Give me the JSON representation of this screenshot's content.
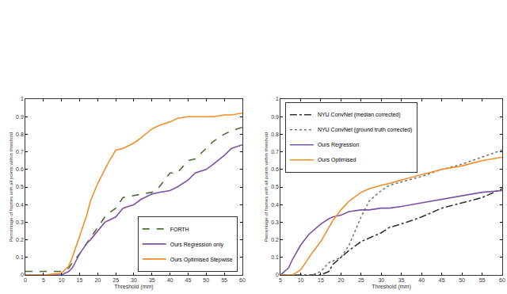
{
  "chart_data": [
    {
      "type": "line",
      "x_label": "Threshold (mm)",
      "y_label": "Percentage of frames with all points within threshold",
      "xlim": [
        0,
        60
      ],
      "ylim": [
        0,
        1
      ],
      "xticks": [
        0,
        5,
        10,
        15,
        20,
        25,
        30,
        35,
        40,
        45,
        50,
        55,
        60
      ],
      "yticks": [
        0,
        0.1,
        0.2,
        0.3,
        0.4,
        0.5,
        0.6,
        0.7,
        0.8,
        0.9,
        1
      ],
      "grid": false,
      "legend": "lower right",
      "x": [
        0,
        5,
        10,
        12,
        13,
        15,
        17,
        18,
        20,
        22,
        23,
        25,
        27,
        30,
        32,
        35,
        37,
        40,
        42,
        45,
        47,
        50,
        52,
        55,
        57,
        60
      ],
      "series": [
        {
          "name": "FORTH",
          "color": "#4f6b2f",
          "line_style": "dash",
          "values": [
            0.02,
            0.02,
            0.02,
            0.04,
            0.07,
            0.12,
            0.18,
            0.21,
            0.27,
            0.33,
            0.35,
            0.38,
            0.44,
            0.45,
            0.46,
            0.47,
            0.5,
            0.58,
            0.58,
            0.65,
            0.66,
            0.72,
            0.76,
            0.8,
            0.82,
            0.84
          ]
        },
        {
          "name": "Ours Regression only",
          "color": "#7b52a5",
          "line_style": "solid",
          "values": [
            0,
            0,
            0,
            0.02,
            0.04,
            0.12,
            0.18,
            0.2,
            0.25,
            0.3,
            0.31,
            0.33,
            0.38,
            0.4,
            0.43,
            0.46,
            0.47,
            0.48,
            0.5,
            0.54,
            0.58,
            0.6,
            0.63,
            0.68,
            0.72,
            0.74
          ]
        },
        {
          "name": "Ours Optimised Stepwise",
          "color": "#f28e2b",
          "line_style": "solid",
          "values": [
            0,
            0,
            0.01,
            0.05,
            0.1,
            0.22,
            0.34,
            0.42,
            0.52,
            0.6,
            0.64,
            0.71,
            0.72,
            0.75,
            0.78,
            0.83,
            0.85,
            0.87,
            0.89,
            0.9,
            0.9,
            0.9,
            0.9,
            0.91,
            0.91,
            0.92
          ]
        }
      ]
    },
    {
      "type": "line",
      "x_label": "Threshold (mm)",
      "y_label": "Percentage of frames with all points within threshold",
      "xlim": [
        5,
        60
      ],
      "ylim": [
        0,
        1
      ],
      "xticks": [
        5,
        10,
        15,
        20,
        25,
        30,
        35,
        40,
        45,
        50,
        55,
        60
      ],
      "yticks": [
        0,
        0.1,
        0.2,
        0.3,
        0.4,
        0.5,
        0.6,
        0.7,
        0.8,
        0.9,
        1
      ],
      "grid": false,
      "legend": "upper left",
      "x": [
        5,
        7,
        8,
        10,
        12,
        13,
        15,
        17,
        18,
        20,
        22,
        25,
        27,
        30,
        32,
        35,
        40,
        45,
        50,
        55,
        60
      ],
      "series": [
        {
          "name": "NYU ConvNet (median corrected)",
          "color": "#333333",
          "line_style": "dashdot",
          "values": [
            0,
            0,
            0,
            0,
            0,
            0,
            0,
            0.02,
            0.06,
            0.1,
            0.14,
            0.19,
            0.21,
            0.24,
            0.27,
            0.29,
            0.33,
            0.38,
            0.41,
            0.44,
            0.49
          ]
        },
        {
          "name": "NYU ConvNet (ground truth corrected)",
          "color": "#777777",
          "line_style": "dot",
          "values": [
            0,
            0,
            0,
            0,
            0,
            0,
            0.02,
            0.07,
            0.08,
            0.1,
            0.17,
            0.33,
            0.42,
            0.48,
            0.51,
            0.53,
            0.56,
            0.6,
            0.63,
            0.67,
            0.71
          ]
        },
        {
          "name": "Ours Regression",
          "color": "#7b52a5",
          "line_style": "solid",
          "values": [
            0,
            0.04,
            0.09,
            0.17,
            0.23,
            0.25,
            0.29,
            0.32,
            0.33,
            0.34,
            0.36,
            0.37,
            0.37,
            0.38,
            0.38,
            0.39,
            0.41,
            0.43,
            0.45,
            0.47,
            0.48
          ]
        },
        {
          "name": "Ours Optimised",
          "color": "#f28e2b",
          "line_style": "solid",
          "values": [
            0,
            0,
            0,
            0.03,
            0.1,
            0.13,
            0.19,
            0.27,
            0.31,
            0.37,
            0.42,
            0.47,
            0.49,
            0.51,
            0.52,
            0.54,
            0.57,
            0.6,
            0.62,
            0.65,
            0.67
          ]
        }
      ]
    }
  ]
}
